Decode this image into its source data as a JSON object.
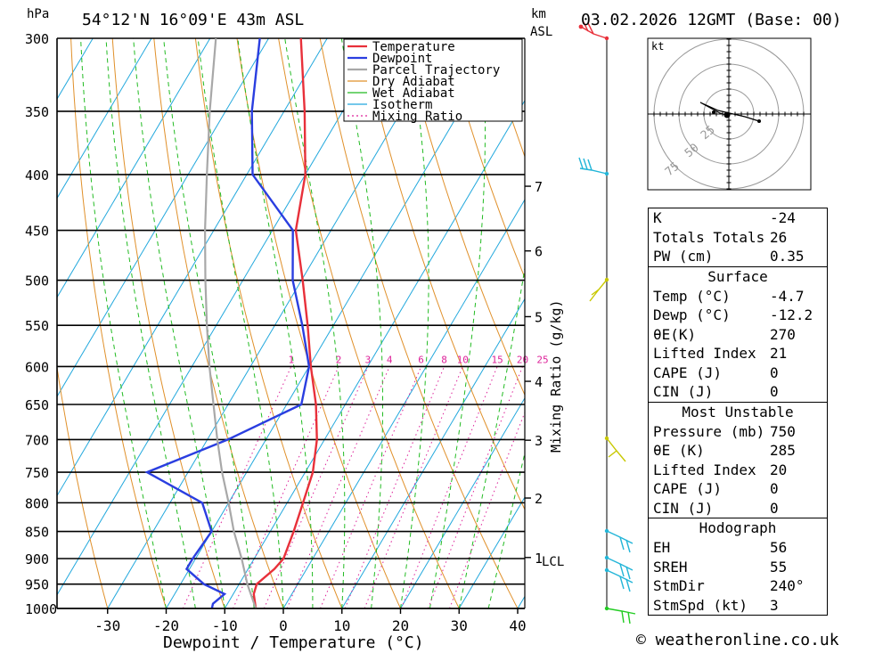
{
  "header": {
    "location": "54°12'N 16°09'E 43m ASL",
    "datetime": "03.02.2026 12GMT (Base: 00)",
    "p_unit": "hPa",
    "km_unit": "km",
    "km_ref": "ASL"
  },
  "chart_data": {
    "type": "line",
    "title": "54°12'N 16°09'E 43m ASL",
    "xlabel": "Dewpoint / Temperature (°C)",
    "ylabel": "hPa",
    "mixing_ratio_label": "Mixing Ratio (g/kg)",
    "xlim": [
      -40,
      40
    ],
    "plim": [
      1000,
      300
    ],
    "pressure_levels": [
      300,
      350,
      400,
      450,
      500,
      550,
      600,
      650,
      700,
      750,
      800,
      850,
      900,
      950,
      1000
    ],
    "temp_ticks": [
      -30,
      -20,
      -10,
      0,
      10,
      20,
      30,
      40
    ],
    "km_ticks": [
      {
        "label": "1",
        "p": 898
      },
      {
        "label": "2",
        "p": 792
      },
      {
        "label": "3",
        "p": 701
      },
      {
        "label": "4",
        "p": 619
      },
      {
        "label": "5",
        "p": 540
      },
      {
        "label": "6",
        "p": 470
      },
      {
        "label": "7",
        "p": 410
      }
    ],
    "lcl": {
      "label": "LCL",
      "p": 902
    },
    "mixing_ratio_values": [
      "1",
      "2",
      "3",
      "4",
      "6",
      "8",
      "10",
      "15",
      "20",
      "25"
    ],
    "legend": [
      "Temperature",
      "Dewpoint",
      "Parcel Trajectory",
      "Dry Adiabat",
      "Wet Adiabat",
      "Isotherm",
      "Mixing Ratio"
    ],
    "series": [
      {
        "name": "Temperature",
        "color": "#e8303a",
        "points": [
          [
            1000,
            -4.7
          ],
          [
            970,
            -6.5
          ],
          [
            950,
            -7.0
          ],
          [
            920,
            -5.5
          ],
          [
            900,
            -5.0
          ],
          [
            850,
            -6.0
          ],
          [
            800,
            -7.3
          ],
          [
            750,
            -8.7
          ],
          [
            700,
            -11.3
          ],
          [
            650,
            -15.0
          ],
          [
            600,
            -19.7
          ],
          [
            550,
            -24.4
          ],
          [
            500,
            -29.8
          ],
          [
            450,
            -36.0
          ],
          [
            400,
            -40.0
          ],
          [
            350,
            -46.5
          ],
          [
            300,
            -54.5
          ]
        ]
      },
      {
        "name": "Dewpoint",
        "color": "#2a3ee0",
        "points": [
          [
            1000,
            -12.2
          ],
          [
            990,
            -12.5
          ],
          [
            970,
            -11.5
          ],
          [
            950,
            -16.0
          ],
          [
            920,
            -20.5
          ],
          [
            900,
            -20.5
          ],
          [
            850,
            -20.0
          ],
          [
            800,
            -24.5
          ],
          [
            750,
            -37.0
          ],
          [
            700,
            -26.5
          ],
          [
            650,
            -17.5
          ],
          [
            600,
            -20.0
          ],
          [
            550,
            -25.3
          ],
          [
            500,
            -31.5
          ],
          [
            450,
            -36.5
          ],
          [
            400,
            -49.0
          ],
          [
            350,
            -55.5
          ],
          [
            300,
            -61.5
          ]
        ]
      },
      {
        "name": "Parcel Trajectory",
        "color": "#a8a8a8",
        "points": [
          [
            1000,
            -4.7
          ],
          [
            950,
            -8.6
          ],
          [
            902,
            -12.0
          ],
          [
            850,
            -16.2
          ],
          [
            800,
            -20.0
          ],
          [
            750,
            -24.2
          ],
          [
            700,
            -28.3
          ],
          [
            650,
            -32.5
          ],
          [
            600,
            -37.0
          ],
          [
            550,
            -41.6
          ],
          [
            500,
            -46.4
          ],
          [
            450,
            -51.5
          ],
          [
            400,
            -56.8
          ],
          [
            350,
            -62.7
          ],
          [
            300,
            -69.0
          ]
        ]
      }
    ]
  },
  "wind_colors": {
    "low": "#22b5d8",
    "mid": "#c8c800",
    "upper": "#22b5d8",
    "surface": "#22cc22"
  },
  "hodograph": {
    "unit": "kt",
    "rings": [
      "25",
      "50",
      "75"
    ]
  },
  "indices": {
    "general": [
      {
        "label": "K",
        "value": "-24"
      },
      {
        "label": "Totals Totals",
        "value": "26"
      },
      {
        "label": "PW (cm)",
        "value": "0.35"
      }
    ],
    "surface": {
      "title": "Surface",
      "rows": [
        {
          "label": "Temp (°C)",
          "value": "-4.7"
        },
        {
          "label": "Dewp (°C)",
          "value": "-12.2"
        },
        {
          "label": "θE(K)",
          "value": "270"
        },
        {
          "label": "Lifted Index",
          "value": "21"
        },
        {
          "label": "CAPE (J)",
          "value": "0"
        },
        {
          "label": "CIN (J)",
          "value": "0"
        }
      ]
    },
    "most_unstable": {
      "title": "Most Unstable",
      "rows": [
        {
          "label": "Pressure (mb)",
          "value": "750"
        },
        {
          "label": "θE (K)",
          "value": "285"
        },
        {
          "label": "Lifted Index",
          "value": "20"
        },
        {
          "label": "CAPE (J)",
          "value": "0"
        },
        {
          "label": "CIN (J)",
          "value": "0"
        }
      ]
    },
    "hodograph": {
      "title": "Hodograph",
      "rows": [
        {
          "label": "EH",
          "value": "56"
        },
        {
          "label": "SREH",
          "value": "55"
        },
        {
          "label": "StmDir",
          "value": "240°"
        },
        {
          "label": "StmSpd (kt)",
          "value": "3"
        }
      ]
    }
  },
  "footer": {
    "credit": "© weatheronline.co.uk"
  }
}
